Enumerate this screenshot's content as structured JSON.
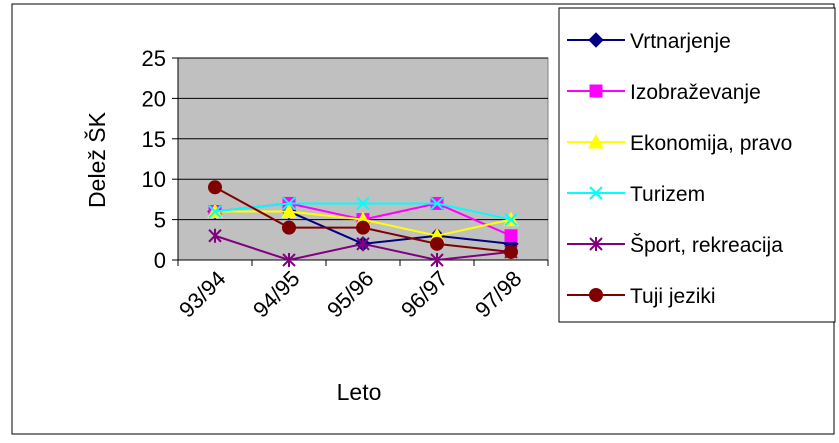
{
  "chart_data": {
    "type": "line",
    "title": "",
    "xlabel": "Leto",
    "ylabel": "Delež ŠK",
    "categories": [
      "93/94",
      "94/95",
      "95/96",
      "96/97",
      "97/98"
    ],
    "ylim": [
      0,
      25
    ],
    "yticks": [
      0,
      5,
      10,
      15,
      20,
      25
    ],
    "grid": true,
    "plot_background": "#C0C0C0",
    "legend_position": "right",
    "series": [
      {
        "name": "Vrtnarjenje",
        "values": [
          6,
          6,
          2,
          3,
          2
        ],
        "color": "#000080",
        "marker": "diamond"
      },
      {
        "name": "Izobraževanje",
        "values": [
          6,
          7,
          5,
          7,
          3
        ],
        "color": "#FF00FF",
        "marker": "square"
      },
      {
        "name": "Ekonomija, pravo",
        "values": [
          6,
          6,
          5,
          3,
          5
        ],
        "color": "#FFFF00",
        "marker": "triangle"
      },
      {
        "name": "Turizem",
        "values": [
          6,
          7,
          7,
          7,
          5
        ],
        "color": "#00FFFF",
        "marker": "x"
      },
      {
        "name": "Šport, rekreacija",
        "values": [
          3,
          0,
          2,
          0,
          1
        ],
        "color": "#800080",
        "marker": "asterisk"
      },
      {
        "name": "Tuji jeziki",
        "values": [
          9,
          4,
          4,
          2,
          1
        ],
        "color": "#800000",
        "marker": "circle"
      }
    ]
  }
}
